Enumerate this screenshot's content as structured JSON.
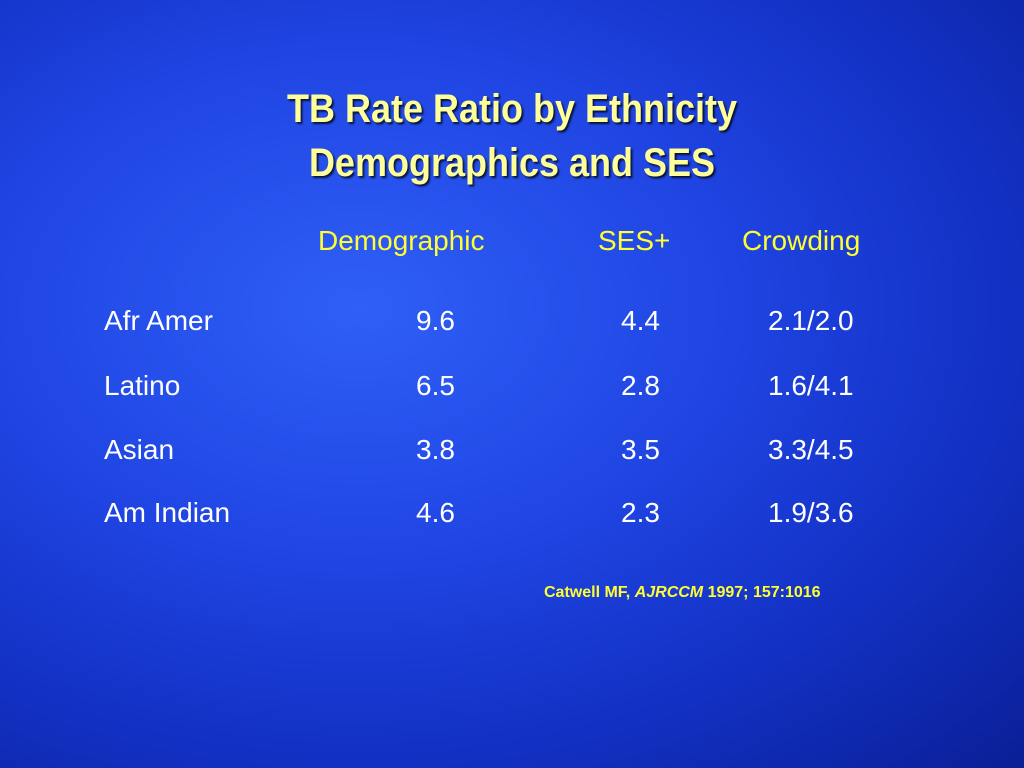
{
  "title": {
    "line1": "TB Rate Ratio by Ethnicity",
    "line2": "Demographics and SES"
  },
  "table": {
    "columns": [
      "Demographic",
      "SES+",
      "Crowding"
    ],
    "rows": [
      {
        "label": "Afr Amer",
        "demographic": "9.6",
        "ses": "4.4",
        "crowding": "2.1/2.0"
      },
      {
        "label": "Latino",
        "demographic": "6.5",
        "ses": "2.8",
        "crowding": "1.6/4.1"
      },
      {
        "label": "Asian",
        "demographic": "3.8",
        "ses": "3.5",
        "crowding": "3.3/4.5"
      },
      {
        "label": "Am Indian",
        "demographic": "4.6",
        "ses": "2.3",
        "crowding": "1.9/3.6"
      }
    ]
  },
  "citation": {
    "author": "Catwell MF, ",
    "journal": "AJRCCM",
    "details": " 1997; 157:1016"
  },
  "colors": {
    "title": "#ffff99",
    "header": "#ffff33",
    "body_text": "#ffffff",
    "background": "#1f44e2"
  }
}
